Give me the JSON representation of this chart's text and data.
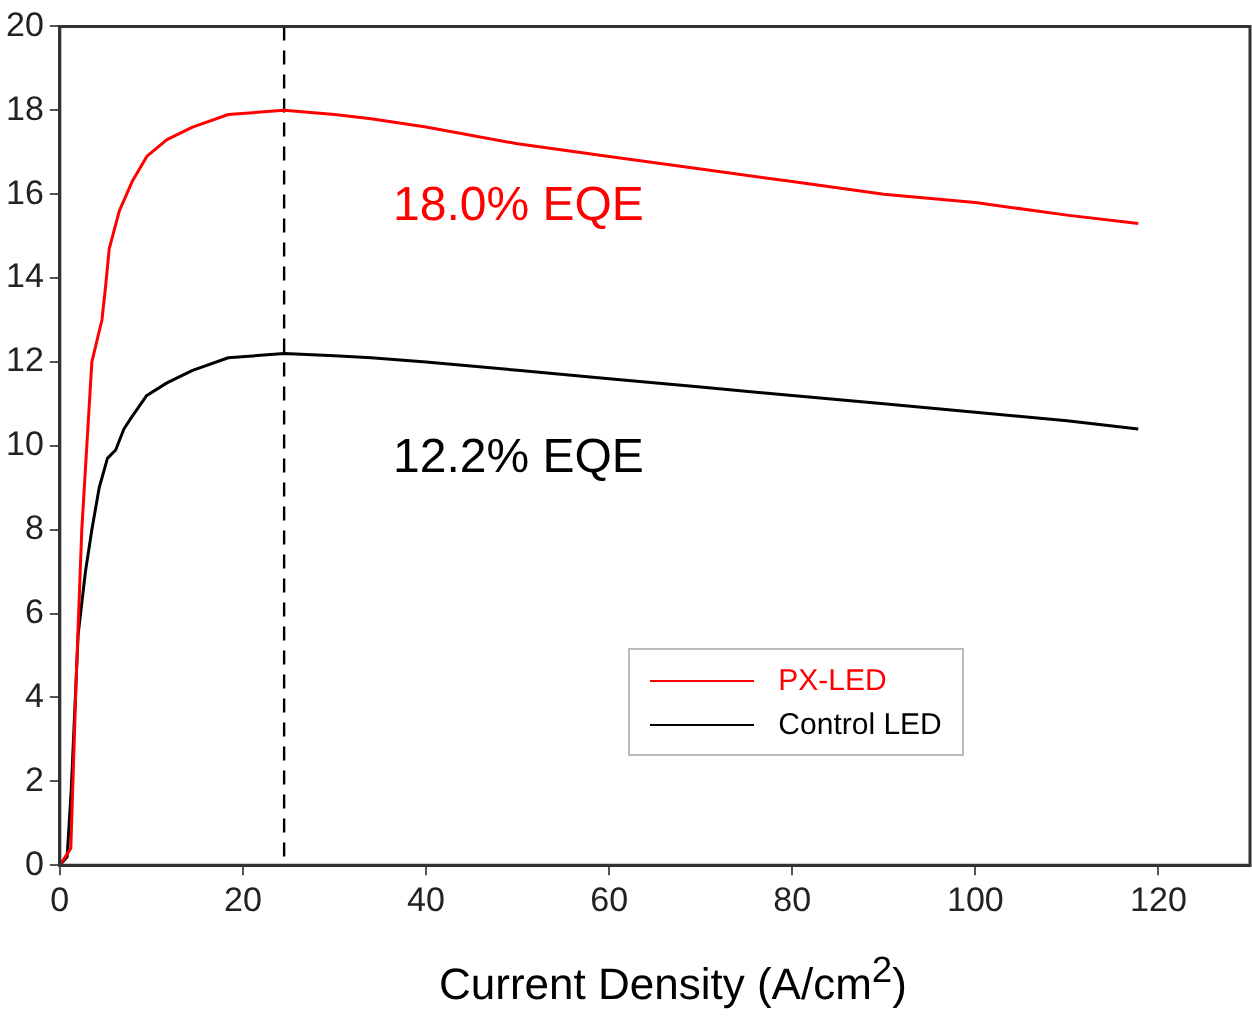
{
  "chart_data": {
    "type": "line",
    "xlabel": "Current Density (A/cm$^{2}$)",
    "xlim": [
      0,
      130
    ],
    "xticks": [
      0,
      20,
      40,
      60,
      80,
      100,
      120
    ],
    "ylim": [
      0,
      20
    ],
    "yticks": [
      0,
      2,
      4,
      6,
      8,
      10,
      12,
      14,
      16,
      18,
      20
    ],
    "grid": false,
    "legend": "bottom right",
    "marker": "none",
    "line_style": "solid",
    "series": [
      {
        "name": "PX-LED",
        "color": "#ff0000",
        "x": [
          0,
          1.2,
          1.8,
          2.4,
          3.5,
          4.6,
          5.0,
          5.4,
          6.5,
          7.9,
          9.5,
          11.7,
          14.5,
          18.4,
          24.5,
          30,
          34,
          40,
          50,
          60,
          70,
          80,
          90,
          100,
          110,
          117.8
        ],
        "values": [
          0,
          0.4,
          4.5,
          8.0,
          12.0,
          13.0,
          13.8,
          14.7,
          15.6,
          16.3,
          16.9,
          17.3,
          17.6,
          17.9,
          18.0,
          17.9,
          17.8,
          17.6,
          17.2,
          16.9,
          16.6,
          16.3,
          16.0,
          15.8,
          15.5,
          15.3
        ]
      },
      {
        "name": "Control LED",
        "color": "#000000",
        "x": [
          0,
          0.8,
          1.25,
          2.0,
          2.8,
          3.5,
          4.3,
          5.2,
          6.1,
          7.0,
          7.9,
          9.5,
          11.7,
          14.5,
          18.4,
          24.5,
          30,
          34,
          40,
          50,
          60,
          70,
          80,
          90,
          100,
          110,
          117.8
        ],
        "values": [
          0,
          0.2,
          1.8,
          5.5,
          7.0,
          8.0,
          9.0,
          9.7,
          9.9,
          10.4,
          10.7,
          11.2,
          11.5,
          11.8,
          12.1,
          12.2,
          12.15,
          12.1,
          12.0,
          11.8,
          11.6,
          11.4,
          11.2,
          11.0,
          10.8,
          10.6,
          10.4
        ]
      }
    ],
    "ref_lines": [
      {
        "axis": "x",
        "value": 24.5,
        "color": "#000000",
        "line_style": "dashed"
      }
    ],
    "annotations": [
      "18.0% EQE",
      "12.2% EQE"
    ]
  }
}
